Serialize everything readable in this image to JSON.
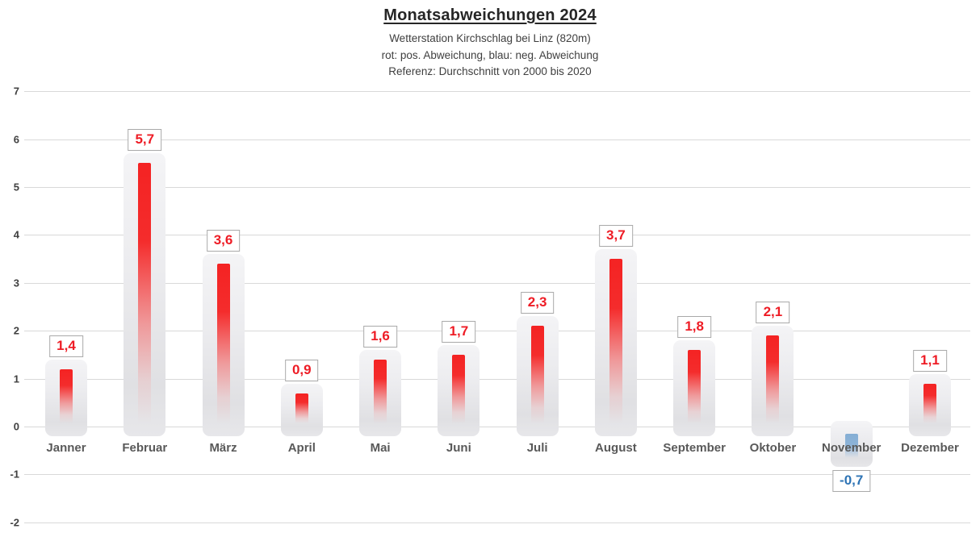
{
  "header": {
    "title": "Monatsabweichungen 2024",
    "subtitle_station": "Wetterstation Kirchschlag bei Linz (820m)",
    "subtitle_colors": "rot: pos. Abweichung, blau: neg. Abweichung",
    "subtitle_reference": "Referenz: Durchschnitt von 2000 bis 2020"
  },
  "chart_data": {
    "type": "bar",
    "title": "Monatsabweichungen 2024",
    "subtitle": "Wetterstation Kirchschlag bei Linz (820m)",
    "legend_note": "rot: pos. Abweichung, blau: neg. Abweichung",
    "reference_note": "Referenz: Durchschnitt von 2000 bis 2020",
    "categories": [
      "Janner",
      "Februar",
      "März",
      "April",
      "Mai",
      "Juni",
      "Juli",
      "August",
      "September",
      "Oktober",
      "November",
      "Dezember"
    ],
    "values": [
      1.4,
      5.7,
      3.6,
      0.9,
      1.6,
      1.7,
      2.3,
      3.7,
      1.8,
      2.1,
      -0.7,
      1.1
    ],
    "value_labels": [
      "1,4",
      "5,7",
      "3,6",
      "0,9",
      "1,6",
      "1,7",
      "2,3",
      "3,7",
      "1,8",
      "2,1",
      "-0,7",
      "1,1"
    ],
    "xlabel": "",
    "ylabel": "",
    "ylim": [
      -2,
      7
    ],
    "yticks": [
      7,
      6,
      5,
      4,
      3,
      2,
      1,
      0,
      -1,
      -2
    ],
    "grid": true,
    "legend_position": "none",
    "colors": {
      "positive_value_text": "#ee1c25",
      "negative_value_text": "#2e74b5",
      "gridline": "#d9d9d9",
      "axis_tick_text": "#404040",
      "category_text": "#595959",
      "bar_background_top": "#f4f4f6",
      "bar_background_bottom": "#e0e0e3",
      "positive_bar": "#f42323",
      "negative_bar": "#85aed4"
    }
  }
}
